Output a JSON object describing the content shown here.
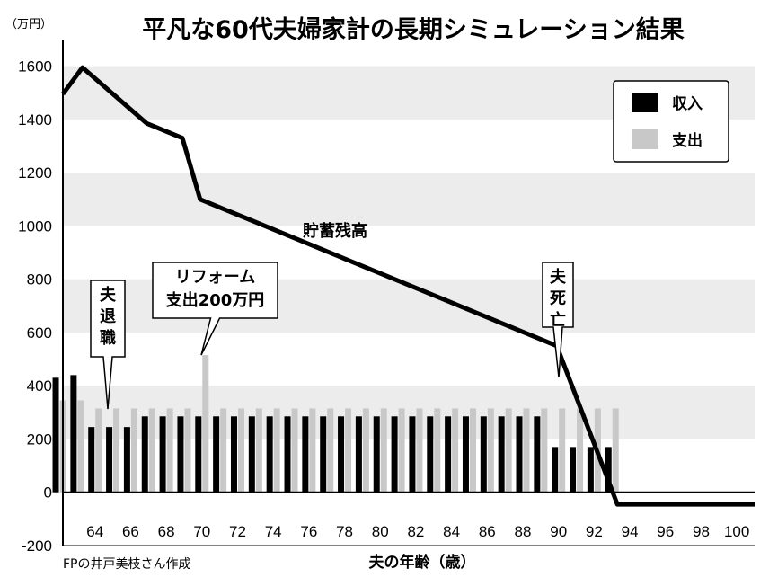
{
  "chart_data": {
    "type": "bar",
    "title": "平凡な60代夫婦家計の長期シミュレーション結果",
    "unit_label": "（万円）",
    "xlabel": "夫の年齢（歳）",
    "source": "FPの井戸美枝さん作成",
    "ylim": [
      -200,
      1700
    ],
    "yticks": [
      1600,
      1400,
      1200,
      1000,
      800,
      600,
      400,
      200,
      0,
      -200
    ],
    "xlim": [
      62.2,
      101
    ],
    "xticks": [
      64,
      66,
      68,
      70,
      72,
      74,
      76,
      78,
      80,
      82,
      84,
      86,
      88,
      90,
      92,
      94,
      96,
      98,
      100
    ],
    "legend": {
      "position": "top-right",
      "items": [
        {
          "label": "収入",
          "color": "#000000"
        },
        {
          "label": "支出",
          "color": "#c8c8c8"
        }
      ]
    },
    "series": [
      {
        "name": "収入",
        "color": "#000000",
        "x": [
          62,
          63,
          64,
          65,
          66,
          67,
          68,
          69,
          70,
          71,
          72,
          73,
          74,
          75,
          76,
          77,
          78,
          79,
          80,
          81,
          82,
          83,
          84,
          85,
          86,
          87,
          88,
          89,
          90,
          91,
          92,
          93
        ],
        "values": [
          430,
          440,
          245,
          245,
          245,
          285,
          285,
          285,
          285,
          285,
          285,
          285,
          285,
          285,
          285,
          285,
          285,
          285,
          285,
          285,
          285,
          285,
          285,
          285,
          285,
          285,
          285,
          285,
          170,
          170,
          170,
          170
        ]
      },
      {
        "name": "支出",
        "color": "#c8c8c8",
        "x": [
          62,
          63,
          64,
          65,
          66,
          67,
          68,
          69,
          70,
          71,
          72,
          73,
          74,
          75,
          76,
          77,
          78,
          79,
          80,
          81,
          82,
          83,
          84,
          85,
          86,
          87,
          88,
          89,
          90,
          91,
          92,
          93
        ],
        "values": [
          345,
          345,
          315,
          315,
          315,
          315,
          315,
          315,
          515,
          315,
          315,
          315,
          315,
          315,
          315,
          315,
          315,
          315,
          315,
          315,
          315,
          315,
          315,
          315,
          315,
          315,
          315,
          315,
          315,
          315,
          315,
          315
        ]
      },
      {
        "name": "貯蓄残高",
        "type": "line",
        "color": "#000000",
        "points": [
          [
            62.2,
            1495
          ],
          [
            63.3,
            1595
          ],
          [
            66.9,
            1385
          ],
          [
            68.9,
            1330
          ],
          [
            69.9,
            1100
          ],
          [
            89.9,
            550
          ],
          [
            93.3,
            -45
          ],
          [
            101,
            -45
          ]
        ]
      }
    ],
    "annotations": [
      {
        "lines": [
          "夫",
          "退",
          "職"
        ],
        "x": 64.3
      },
      {
        "lines": [
          "リフォーム",
          "支出200万円"
        ],
        "x": 70
      },
      {
        "lines": [
          "夫",
          "死",
          "亡"
        ],
        "x": 90
      }
    ]
  }
}
